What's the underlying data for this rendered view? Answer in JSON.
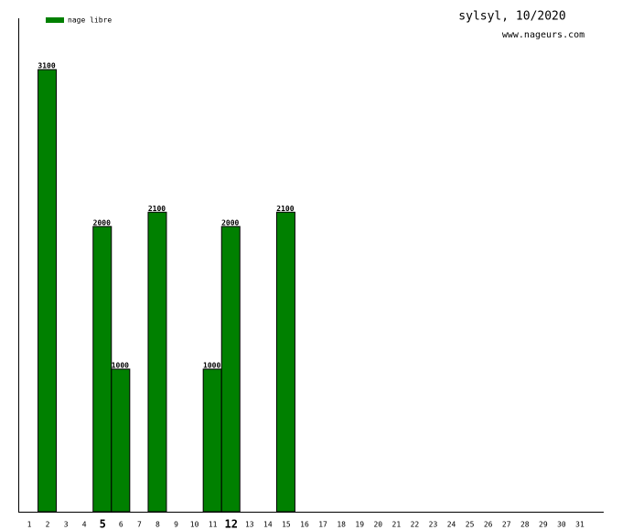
{
  "chart_data": {
    "type": "bar",
    "title": "sylsyl, 10/2020",
    "subtitle": "www.nageurs.com",
    "categories": [
      "1",
      "2",
      "3",
      "4",
      "5",
      "6",
      "7",
      "8",
      "9",
      "10",
      "11",
      "12",
      "13",
      "14",
      "15",
      "16",
      "17",
      "18",
      "19",
      "20",
      "21",
      "22",
      "23",
      "24",
      "25",
      "26",
      "27",
      "28",
      "29",
      "30",
      "31"
    ],
    "series": [
      {
        "name": "nage libre",
        "color": "#008000",
        "values": [
          null,
          3100,
          null,
          null,
          2000,
          1000,
          null,
          2100,
          null,
          null,
          1000,
          2000,
          null,
          null,
          2100,
          null,
          null,
          null,
          null,
          null,
          null,
          null,
          null,
          null,
          null,
          null,
          null,
          null,
          null,
          null,
          null
        ]
      }
    ],
    "bold_categories": [
      4,
      11
    ],
    "ylim": [
      0,
      3460
    ],
    "legend": "top-left"
  }
}
